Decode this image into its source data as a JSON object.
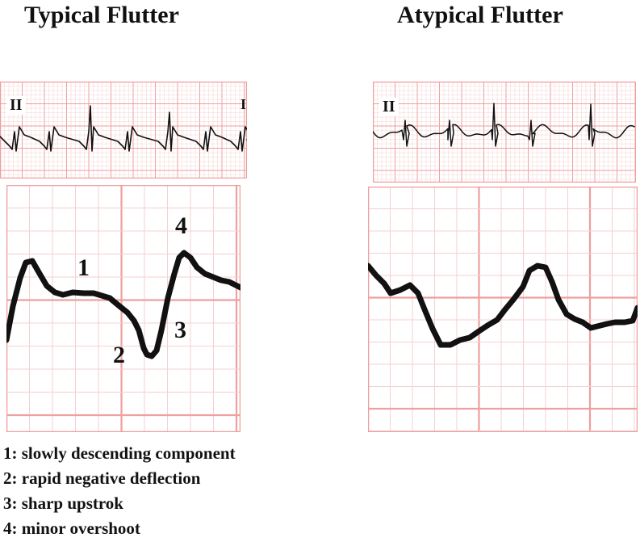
{
  "figure": {
    "typical": {
      "title": "Typical Flutter",
      "lead_label": "II",
      "lead_label_edge": "I",
      "wave_labels": [
        "1",
        "2",
        "3",
        "4"
      ]
    },
    "atypical": {
      "title": "Atypical Flutter",
      "lead_label": "II"
    },
    "legend": [
      "1: slowly descending component",
      "2: rapid negative deflection",
      "3: sharp upstrok",
      "4: minor overshoot"
    ],
    "colors": {
      "grid_fine": "#f6d0d0",
      "grid_major": "#ee9f9f",
      "trace": "#111111"
    }
  }
}
